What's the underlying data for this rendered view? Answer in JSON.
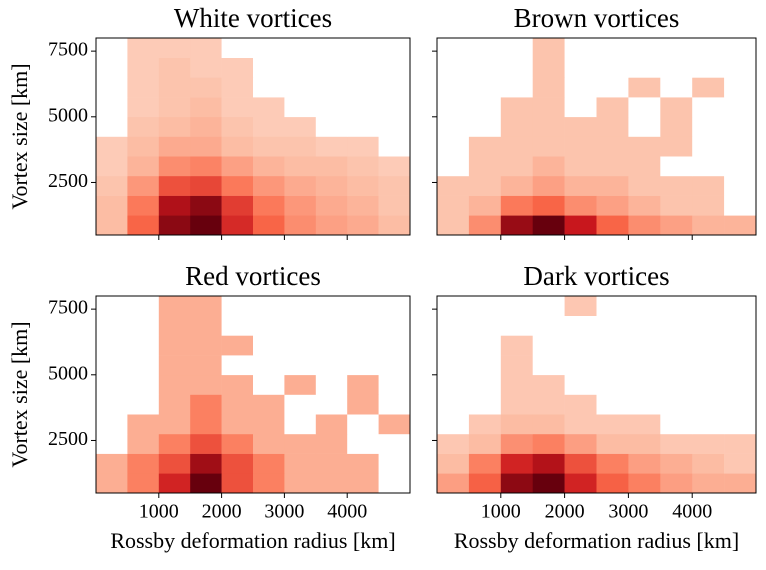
{
  "chart_data": [
    {
      "type": "heatmap",
      "title": "White vortices",
      "ylabel": "Vortex size [km]",
      "colormap": "Reds",
      "xlim": [
        0,
        5000
      ],
      "ylim": [
        500,
        8000
      ],
      "xticks": [
        1000,
        2000,
        3000,
        4000
      ],
      "yticks": [
        2500,
        5000,
        7500
      ],
      "xticklabels_visible": false,
      "yticklabels_visible": true,
      "x_bins": [
        0,
        500,
        1000,
        1500,
        2000,
        2500,
        3000,
        3500,
        4000,
        4500,
        5000
      ],
      "y_bins": [
        500,
        1250,
        2000,
        2750,
        3500,
        4250,
        5000,
        5750,
        6500,
        7250,
        8000
      ],
      "counts": [
        [
          3,
          12,
          25,
          28,
          18,
          12,
          8,
          6,
          5,
          3
        ],
        [
          3,
          10,
          22,
          25,
          16,
          10,
          7,
          5,
          4,
          2
        ],
        [
          2,
          7,
          14,
          15,
          10,
          7,
          5,
          4,
          3,
          2
        ],
        [
          1,
          4,
          8,
          9,
          6,
          4,
          3,
          3,
          2,
          1
        ],
        [
          1,
          3,
          5,
          5,
          3,
          2,
          2,
          1,
          1,
          0
        ],
        [
          0,
          2,
          3,
          4,
          2,
          1,
          1,
          0,
          0,
          0
        ],
        [
          0,
          1,
          2,
          3,
          1,
          1,
          0,
          0,
          0,
          0
        ],
        [
          0,
          1,
          2,
          2,
          1,
          0,
          0,
          0,
          0,
          0
        ],
        [
          0,
          1,
          2,
          1,
          1,
          0,
          0,
          0,
          0,
          0
        ],
        [
          0,
          1,
          1,
          1,
          0,
          0,
          0,
          0,
          0,
          0
        ]
      ]
    },
    {
      "type": "heatmap",
      "title": "Brown vortices",
      "colormap": "Reds",
      "xlim": [
        0,
        5000
      ],
      "ylim": [
        500,
        8000
      ],
      "xticks": [
        1000,
        2000,
        3000,
        4000
      ],
      "yticks": [
        2500,
        5000,
        7500
      ],
      "xticklabels_visible": false,
      "yticklabels_visible": false,
      "x_bins": [
        0,
        500,
        1000,
        1500,
        2000,
        2500,
        3000,
        3500,
        4000,
        4500,
        5000
      ],
      "y_bins": [
        500,
        1250,
        2000,
        2750,
        3500,
        4250,
        5000,
        5750,
        6500,
        7250,
        8000
      ],
      "counts": [
        [
          1,
          4,
          12,
          14,
          10,
          6,
          4,
          3,
          2,
          2
        ],
        [
          1,
          2,
          5,
          6,
          4,
          3,
          2,
          1,
          1,
          0
        ],
        [
          1,
          1,
          2,
          3,
          2,
          2,
          1,
          1,
          1,
          0
        ],
        [
          0,
          1,
          1,
          2,
          1,
          1,
          1,
          0,
          0,
          0
        ],
        [
          0,
          1,
          1,
          1,
          1,
          1,
          1,
          1,
          0,
          0
        ],
        [
          0,
          0,
          1,
          1,
          1,
          1,
          0,
          1,
          0,
          0
        ],
        [
          0,
          0,
          1,
          1,
          0,
          1,
          0,
          1,
          0,
          0
        ],
        [
          0,
          0,
          0,
          1,
          0,
          0,
          1,
          0,
          1,
          0
        ],
        [
          0,
          0,
          0,
          1,
          0,
          0,
          0,
          0,
          0,
          0
        ],
        [
          0,
          0,
          0,
          1,
          0,
          0,
          0,
          0,
          0,
          0
        ]
      ]
    },
    {
      "type": "heatmap",
      "title": "Red vortices",
      "xlabel": "Rossby deformation radius [km]",
      "ylabel": "Vortex size [km]",
      "colormap": "Reds",
      "xlim": [
        0,
        5000
      ],
      "ylim": [
        500,
        8000
      ],
      "xticks": [
        1000,
        2000,
        3000,
        4000
      ],
      "yticks": [
        2500,
        5000,
        7500
      ],
      "xticklabels_visible": true,
      "yticklabels_visible": true,
      "x_bins": [
        0,
        500,
        1000,
        1500,
        2000,
        2500,
        3000,
        3500,
        4000,
        4500,
        5000
      ],
      "y_bins": [
        500,
        1250,
        2000,
        2750,
        3500,
        4250,
        5000,
        5750,
        6500,
        7250,
        8000
      ],
      "counts": [
        [
          1,
          2,
          4,
          6,
          3,
          2,
          1,
          1,
          1,
          0
        ],
        [
          1,
          2,
          3,
          5,
          3,
          2,
          1,
          1,
          1,
          0
        ],
        [
          0,
          1,
          2,
          3,
          2,
          1,
          1,
          1,
          0,
          0
        ],
        [
          0,
          1,
          1,
          2,
          1,
          1,
          0,
          1,
          0,
          1
        ],
        [
          0,
          0,
          1,
          2,
          1,
          1,
          0,
          0,
          1,
          0
        ],
        [
          0,
          0,
          1,
          1,
          1,
          0,
          1,
          0,
          1,
          0
        ],
        [
          0,
          0,
          1,
          1,
          0,
          0,
          0,
          0,
          0,
          0
        ],
        [
          0,
          0,
          1,
          1,
          1,
          0,
          0,
          0,
          0,
          0
        ],
        [
          0,
          0,
          1,
          1,
          0,
          0,
          0,
          0,
          0,
          0
        ],
        [
          0,
          0,
          1,
          1,
          0,
          0,
          0,
          0,
          0,
          0
        ]
      ]
    },
    {
      "type": "heatmap",
      "title": "Dark vortices",
      "xlabel": "Rossby deformation radius [km]",
      "colormap": "Reds",
      "xlim": [
        0,
        5000
      ],
      "ylim": [
        500,
        8000
      ],
      "xticks": [
        1000,
        2000,
        3000,
        4000
      ],
      "yticks": [
        2500,
        5000,
        7500
      ],
      "xticklabels_visible": true,
      "yticklabels_visible": false,
      "x_bins": [
        0,
        500,
        1000,
        1500,
        2000,
        2500,
        3000,
        3500,
        4000,
        4500,
        5000
      ],
      "y_bins": [
        500,
        1250,
        2000,
        2750,
        3500,
        4250,
        5000,
        5750,
        6500,
        7250,
        8000
      ],
      "counts": [
        [
          4,
          8,
          16,
          18,
          12,
          8,
          6,
          4,
          3,
          3
        ],
        [
          2,
          6,
          12,
          14,
          9,
          6,
          4,
          3,
          2,
          1
        ],
        [
          1,
          2,
          5,
          6,
          4,
          2,
          2,
          1,
          1,
          1
        ],
        [
          0,
          1,
          2,
          2,
          1,
          1,
          1,
          0,
          0,
          0
        ],
        [
          0,
          0,
          1,
          1,
          1,
          0,
          0,
          0,
          0,
          0
        ],
        [
          0,
          0,
          1,
          1,
          0,
          0,
          0,
          0,
          0,
          0
        ],
        [
          0,
          0,
          1,
          0,
          0,
          0,
          0,
          0,
          0,
          0
        ],
        [
          0,
          0,
          1,
          0,
          0,
          0,
          0,
          0,
          0,
          0
        ],
        [
          0,
          0,
          0,
          0,
          0,
          0,
          0,
          0,
          0,
          0
        ],
        [
          0,
          0,
          0,
          0,
          1,
          0,
          0,
          0,
          0,
          0
        ]
      ]
    }
  ]
}
